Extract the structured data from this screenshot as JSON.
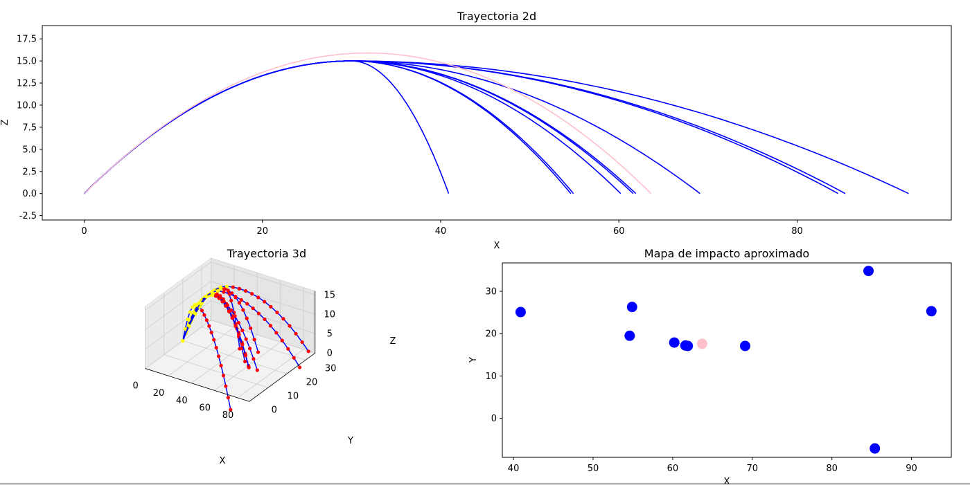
{
  "chart_data": [
    {
      "type": "line",
      "title": "Trayectoria 2d",
      "xlabel": "X",
      "ylabel": "Z",
      "xlim": [
        -4.7,
        97.3
      ],
      "ylim": [
        -3.0,
        19.0
      ],
      "xticks": [
        0,
        20,
        40,
        60,
        80
      ],
      "yticks": [
        -2.5,
        0.0,
        2.5,
        5.0,
        7.5,
        10.0,
        12.5,
        15.0,
        17.5
      ],
      "apex_x": 30.0,
      "series": [
        {
          "color": "#0000ff",
          "peak_z": 15.0,
          "land_x": 40.9
        },
        {
          "color": "#0000ff",
          "peak_z": 15.0,
          "land_x": 54.6
        },
        {
          "color": "#0000ff",
          "peak_z": 15.0,
          "land_x": 54.9
        },
        {
          "color": "#0000ff",
          "peak_z": 15.0,
          "land_x": 60.2
        },
        {
          "color": "#0000ff",
          "peak_z": 15.0,
          "land_x": 61.6
        },
        {
          "color": "#0000ff",
          "peak_z": 15.0,
          "land_x": 61.9
        },
        {
          "color": "#0000ff",
          "peak_z": 15.0,
          "land_x": 69.1
        },
        {
          "color": "#0000ff",
          "peak_z": 15.0,
          "land_x": 84.6
        },
        {
          "color": "#0000ff",
          "peak_z": 15.0,
          "land_x": 85.4
        },
        {
          "color": "#0000ff",
          "peak_z": 15.0,
          "land_x": 92.5
        },
        {
          "color": "#ffc0cb",
          "peak_z": 15.9,
          "apex_x": 31.8,
          "land_x": 63.6
        }
      ]
    },
    {
      "type": "line",
      "title": "Trayectoria 3d",
      "xlabel": "X",
      "ylabel": "Y",
      "zlabel": "Z",
      "xticks": [
        0,
        20,
        40,
        60,
        80
      ],
      "yticks": [
        0,
        10,
        20,
        30
      ],
      "zticks": [
        0,
        5,
        10,
        15
      ],
      "colors": {
        "path": "#0000ff",
        "markers_rising": "#ffff00",
        "markers_falling": "#ff0000"
      }
    },
    {
      "type": "scatter",
      "title": "Mapa de impacto aproximado",
      "xlabel": "X",
      "ylabel": "Y",
      "xlim": [
        38.6,
        95.0
      ],
      "ylim": [
        -9.2,
        36.7
      ],
      "xticks": [
        40,
        50,
        60,
        70,
        80,
        90
      ],
      "yticks": [
        0,
        10,
        20,
        30
      ],
      "points": [
        {
          "x": 40.9,
          "y": 25.1,
          "color": "#0000ff"
        },
        {
          "x": 54.9,
          "y": 26.3,
          "color": "#0000ff"
        },
        {
          "x": 54.6,
          "y": 19.5,
          "color": "#0000ff"
        },
        {
          "x": 60.2,
          "y": 17.9,
          "color": "#0000ff"
        },
        {
          "x": 61.6,
          "y": 17.2,
          "color": "#0000ff"
        },
        {
          "x": 61.9,
          "y": 17.1,
          "color": "#0000ff"
        },
        {
          "x": 63.7,
          "y": 17.6,
          "color": "#ffc0cb"
        },
        {
          "x": 69.1,
          "y": 17.1,
          "color": "#0000ff"
        },
        {
          "x": 84.6,
          "y": 34.8,
          "color": "#0000ff"
        },
        {
          "x": 92.5,
          "y": 25.3,
          "color": "#0000ff"
        },
        {
          "x": 85.4,
          "y": -7.1,
          "color": "#0000ff"
        }
      ]
    }
  ]
}
